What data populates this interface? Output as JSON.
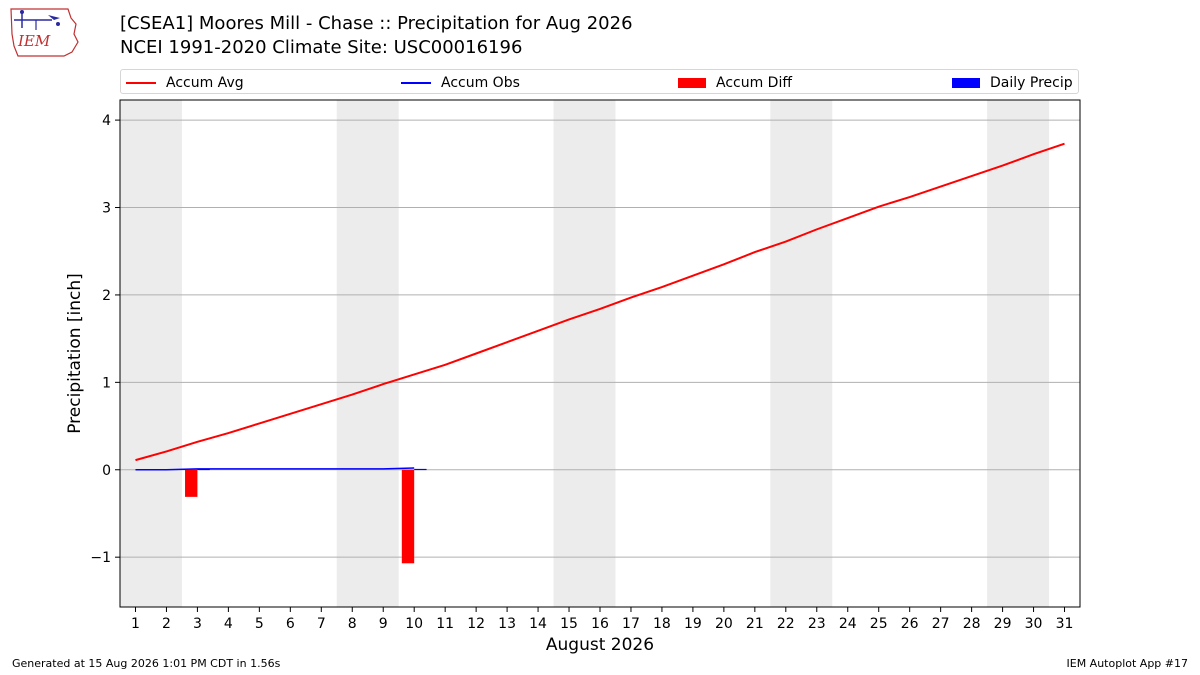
{
  "header": {
    "title_line1": "[CSEA1] Moores Mill - Chase :: Precipitation for Aug 2026",
    "title_line2": "NCEI 1991-2020 Climate Site: USC00016196",
    "logo_text": "IEM"
  },
  "footer": {
    "generated": "Generated at 15 Aug 2026 1:01 PM CDT in 1.56s",
    "app": "IEM Autoplot App #17"
  },
  "colors": {
    "accum_avg": "#ff0000",
    "accum_obs": "#0000ff",
    "accum_diff": "#ff0000",
    "daily_precip": "#0000ff",
    "weekend_band": "#ececec",
    "grid": "#b0b0b0"
  },
  "chart_data": {
    "type": "line",
    "title": "[CSEA1] Moores Mill - Chase :: Precipitation for Aug 2026",
    "subtitle": "NCEI 1991-2020 Climate Site: USC00016196",
    "xlabel": "August 2026",
    "ylabel": "Precipitation [inch]",
    "ylim": [
      -1.57,
      4.23
    ],
    "xlim": [
      0.5,
      31.5
    ],
    "yticks": [
      -1,
      0,
      1,
      2,
      3,
      4
    ],
    "ytick_labels": [
      "−1",
      "0",
      "1",
      "2",
      "3",
      "4"
    ],
    "x": [
      1,
      2,
      3,
      4,
      5,
      6,
      7,
      8,
      9,
      10,
      11,
      12,
      13,
      14,
      15,
      16,
      17,
      18,
      19,
      20,
      21,
      22,
      23,
      24,
      25,
      26,
      27,
      28,
      29,
      30,
      31
    ],
    "xtick_labels": [
      "1",
      "2",
      "3",
      "4",
      "5",
      "6",
      "7",
      "8",
      "9",
      "10",
      "11",
      "12",
      "13",
      "14",
      "15",
      "16",
      "17",
      "18",
      "19",
      "20",
      "21",
      "22",
      "23",
      "24",
      "25",
      "26",
      "27",
      "28",
      "29",
      "30",
      "31"
    ],
    "grid": "y-major",
    "legend": {
      "placement": "top (above axes)",
      "entries": [
        {
          "label": "Accum Avg",
          "kind": "line",
          "color": "#ff0000"
        },
        {
          "label": "Accum Obs",
          "kind": "line",
          "color": "#0000ff"
        },
        {
          "label": "Accum Diff",
          "kind": "bar",
          "color": "#ff0000"
        },
        {
          "label": "Daily Precip",
          "kind": "bar",
          "color": "#0000ff"
        }
      ]
    },
    "weekend_bands": [
      [
        0.5,
        2.5
      ],
      [
        7.5,
        9.5
      ],
      [
        14.5,
        16.5
      ],
      [
        21.5,
        23.5
      ],
      [
        28.5,
        30.5
      ]
    ],
    "series": [
      {
        "name": "Accum Avg",
        "type": "line",
        "color": "#ff0000",
        "values": [
          0.11,
          0.21,
          0.32,
          0.42,
          0.53,
          0.64,
          0.75,
          0.86,
          0.98,
          1.09,
          1.2,
          1.33,
          1.46,
          1.59,
          1.72,
          1.84,
          1.97,
          2.09,
          2.22,
          2.35,
          2.49,
          2.61,
          2.75,
          2.88,
          3.01,
          3.12,
          3.24,
          3.36,
          3.48,
          3.61,
          3.73
        ]
      },
      {
        "name": "Accum Obs",
        "type": "line",
        "color": "#0000ff",
        "values": [
          0.0,
          0.0,
          0.01,
          0.01,
          0.01,
          0.01,
          0.01,
          0.01,
          0.01,
          0.02,
          null,
          null,
          null,
          null,
          null,
          null,
          null,
          null,
          null,
          null,
          null,
          null,
          null,
          null,
          null,
          null,
          null,
          null,
          null,
          null,
          null
        ]
      },
      {
        "name": "Accum Diff",
        "type": "bar",
        "color": "#ff0000",
        "values": [
          null,
          null,
          -0.31,
          null,
          null,
          null,
          null,
          null,
          null,
          -1.07,
          null,
          null,
          null,
          null,
          null,
          null,
          null,
          null,
          null,
          null,
          null,
          null,
          null,
          null,
          null,
          null,
          null,
          null,
          null,
          null,
          null
        ]
      },
      {
        "name": "Daily Precip",
        "type": "bar",
        "color": "#0000ff",
        "values": [
          null,
          null,
          0.01,
          null,
          null,
          null,
          null,
          null,
          null,
          0.01,
          null,
          null,
          null,
          null,
          null,
          null,
          null,
          null,
          null,
          null,
          null,
          null,
          null,
          null,
          null,
          null,
          null,
          null,
          null,
          null,
          null
        ]
      }
    ]
  }
}
